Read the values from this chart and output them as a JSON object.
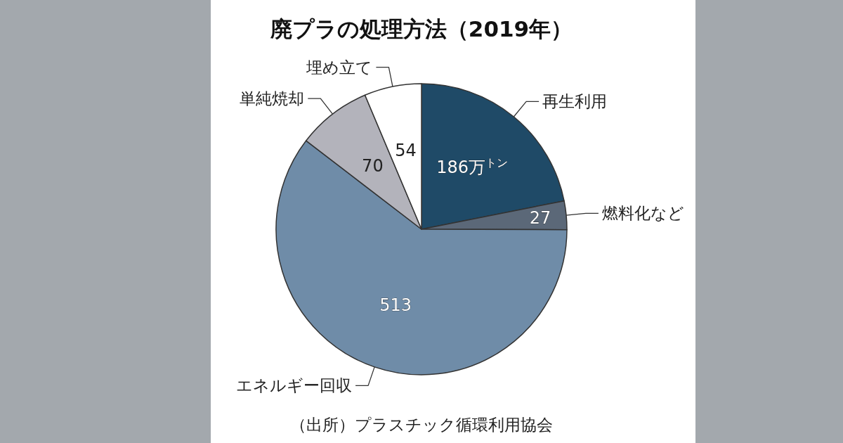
{
  "chart_data": {
    "type": "pie",
    "title": "廃プラの処理方法（2019年）",
    "categories": [
      "再生利用",
      "燃料化など",
      "エネルギー回収",
      "単純焼却",
      "埋め立て"
    ],
    "values": [
      186,
      27,
      513,
      70,
      54
    ],
    "value_labels": [
      "186万$^{トン}$",
      "27",
      "513",
      "70",
      "54"
    ],
    "colors": [
      "#1f4a67",
      "#5b6878",
      "#6f8ca8",
      "#b3b3bb",
      "#ffffff"
    ],
    "annotations": [
      "（出所）プラスチック循環利用協会"
    ]
  }
}
